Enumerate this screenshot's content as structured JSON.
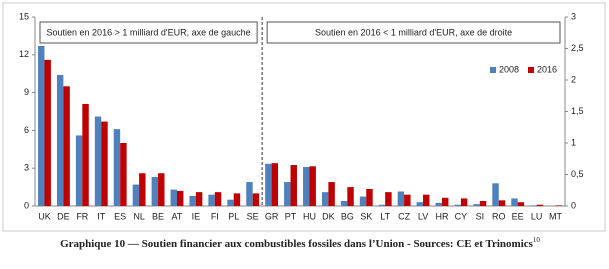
{
  "chart_data": [
    {
      "type": "bar",
      "annotation": "Soutien en 2016 > 1 milliard d'EUR, axe de gauche",
      "categories": [
        "UK",
        "DE",
        "FR",
        "IT",
        "ES",
        "NL",
        "BE",
        "AT",
        "IE",
        "FI",
        "PL",
        "SE"
      ],
      "series": [
        {
          "color": "#4f81bd",
          "values": [
            12.7,
            10.4,
            5.6,
            7.1,
            6.1,
            1.7,
            2.3,
            1.3,
            0.8,
            0.9,
            0.5,
            1.9
          ]
        },
        {
          "color": "#c00000",
          "values": [
            11.6,
            9.5,
            8.1,
            6.7,
            5.0,
            2.6,
            2.6,
            1.2,
            1.1,
            1.1,
            1.0,
            1.0
          ]
        }
      ],
      "ylim": [
        0,
        15
      ],
      "yticks": [
        0,
        3,
        6,
        9,
        12,
        15
      ]
    },
    {
      "type": "bar",
      "annotation": "Soutien en 2016 < 1 milliard d'EUR, axe de droite",
      "categories": [
        "GR",
        "PT",
        "HU",
        "DK",
        "BG",
        "SK",
        "LT",
        "CZ",
        "LV",
        "HR",
        "CY",
        "SI",
        "RO",
        "EE",
        "LU",
        "MT"
      ],
      "series": [
        {
          "name": "2008",
          "color": "#4f81bd",
          "axis": "y2",
          "values": [
            0.67,
            0.38,
            0.62,
            0.22,
            0.08,
            0.15,
            0.02,
            0.23,
            0.06,
            0.05,
            0.02,
            0.03,
            0.36,
            0.12,
            0.01,
            0.0
          ]
        },
        {
          "name": "2016",
          "color": "#c00000",
          "axis": "y2",
          "values": [
            0.68,
            0.65,
            0.63,
            0.38,
            0.3,
            0.27,
            0.22,
            0.18,
            0.18,
            0.13,
            0.12,
            0.08,
            0.09,
            0.06,
            0.02,
            0.01
          ]
        }
      ],
      "y2lim": [
        0,
        3
      ],
      "y2ticks": [
        0,
        {
          "value": 0.5,
          "label": "0,5"
        },
        1,
        {
          "value": 1.5,
          "label": "1,5"
        },
        2,
        {
          "value": 2.5,
          "label": "2,5"
        },
        3
      ],
      "legend": "top-right"
    }
  ],
  "caption": "Graphique 10 — Soutien financier aux combustibles fossiles dans l’Union - Sources: CE et Trinomics",
  "caption_note": "10"
}
